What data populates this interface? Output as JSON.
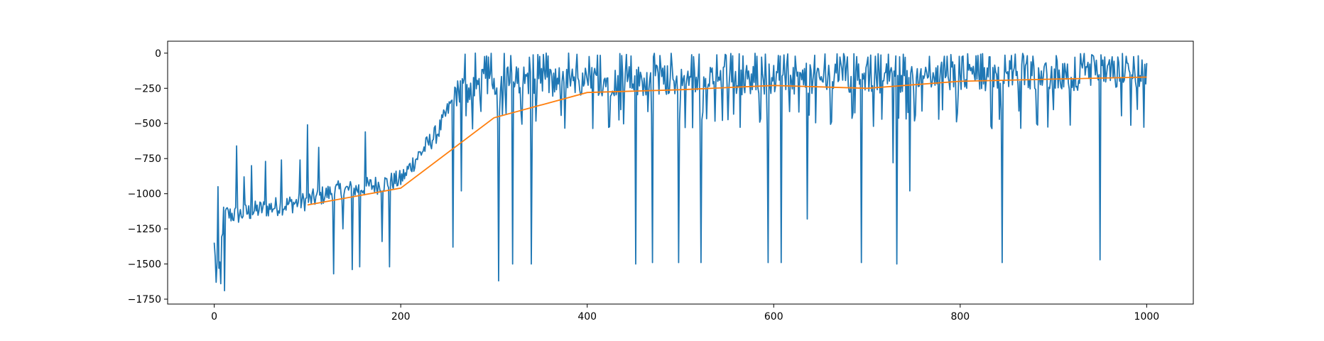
{
  "chart_data": {
    "type": "line",
    "title": "",
    "xlabel": "",
    "ylabel": "",
    "xlim": [
      -50,
      1050
    ],
    "ylim": [
      -1785,
      85
    ],
    "x_ticks": [
      0,
      200,
      400,
      600,
      800,
      1000
    ],
    "y_ticks": [
      0,
      -250,
      -500,
      -750,
      -1000,
      -1250,
      -1500,
      -1750
    ],
    "x_tick_labels": [
      "0",
      "200",
      "400",
      "600",
      "800",
      "1000"
    ],
    "y_tick_labels": [
      "0",
      "−250",
      "−500",
      "−750",
      "−1000",
      "−1250",
      "−1500",
      "−1750"
    ],
    "grid": false,
    "legend": "none",
    "series": [
      {
        "color": "#1f77b4",
        "x_start": 0,
        "x_step": 1,
        "y_range": [
          -1700,
          0
        ],
        "note_values": "episode returns; 1001 points, approximate piecewise profile",
        "anchor_points": [
          [
            0,
            -1370
          ],
          [
            5,
            -1600
          ],
          [
            10,
            -1150
          ],
          [
            25,
            -1150
          ],
          [
            50,
            -1110
          ],
          [
            100,
            -1050
          ],
          [
            130,
            -980
          ],
          [
            150,
            -970
          ],
          [
            200,
            -900
          ],
          [
            220,
            -720
          ],
          [
            240,
            -560
          ],
          [
            260,
            -270
          ],
          [
            300,
            -200
          ],
          [
            400,
            -200
          ],
          [
            1000,
            -150
          ]
        ],
        "spikes": [
          [
            2,
            -1630
          ],
          [
            4,
            -950
          ],
          [
            7,
            -1640
          ],
          [
            11,
            -1690
          ],
          [
            14,
            -1100
          ],
          [
            24,
            -660
          ],
          [
            32,
            -880
          ],
          [
            40,
            -800
          ],
          [
            55,
            -770
          ],
          [
            72,
            -760
          ],
          [
            92,
            -760
          ],
          [
            100,
            -510
          ],
          [
            112,
            -670
          ],
          [
            128,
            -1570
          ],
          [
            138,
            -1250
          ],
          [
            148,
            -1540
          ],
          [
            156,
            -1520
          ],
          [
            162,
            -560
          ],
          [
            180,
            -1340
          ],
          [
            188,
            -1520
          ],
          [
            206,
            -870
          ],
          [
            256,
            -1380
          ],
          [
            265,
            -980
          ],
          [
            280,
            0
          ],
          [
            305,
            -1620
          ],
          [
            320,
            -1500
          ],
          [
            340,
            -1500
          ],
          [
            356,
            0
          ],
          [
            380,
            0
          ],
          [
            452,
            -1500
          ],
          [
            470,
            -1490
          ],
          [
            498,
            -1490
          ],
          [
            522,
            -1490
          ],
          [
            594,
            -1490
          ],
          [
            608,
            -1490
          ],
          [
            636,
            -1180
          ],
          [
            694,
            -1490
          ],
          [
            728,
            -780
          ],
          [
            732,
            -1500
          ],
          [
            746,
            -980
          ],
          [
            845,
            -1490
          ],
          [
            950,
            -1470
          ],
          [
            990,
            -400
          ]
        ]
      },
      {
        "color": "#ff7f0e",
        "x": [
          100,
          200,
          300,
          400,
          500,
          600,
          700,
          800,
          900,
          1000
        ],
        "values": [
          -1080,
          -960,
          -460,
          -280,
          -260,
          -230,
          -250,
          -200,
          -185,
          -170
        ]
      }
    ]
  }
}
